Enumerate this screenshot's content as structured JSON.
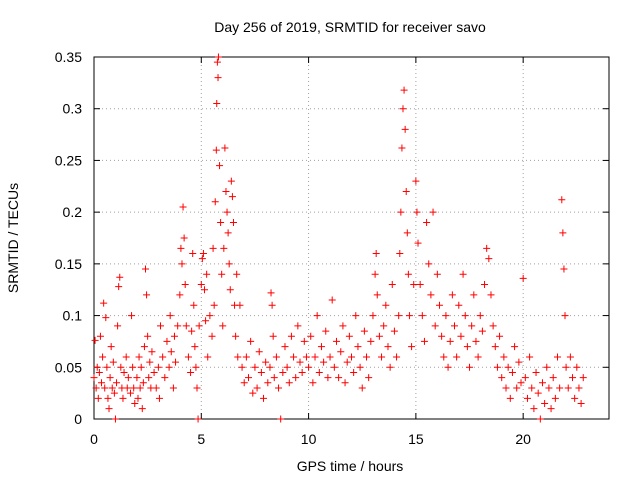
{
  "chart_data": {
    "type": "scatter",
    "title": "Day 256 of 2019, SRMTID for receiver savo",
    "xlabel": "GPS time / hours",
    "ylabel": "SRMTID / TECUs",
    "xlim": [
      0,
      24
    ],
    "ylim": [
      0,
      0.35
    ],
    "grid": true,
    "marker": "+",
    "marker_color": "#ff0000",
    "x_ticks": [
      {
        "value": 0,
        "label": "0"
      },
      {
        "value": 5,
        "label": "5"
      },
      {
        "value": 10,
        "label": "10"
      },
      {
        "value": 15,
        "label": "15"
      },
      {
        "value": 20,
        "label": "20"
      }
    ],
    "y_ticks": [
      {
        "value": 0,
        "label": "0"
      },
      {
        "value": 0.05,
        "label": "0.05"
      },
      {
        "value": 0.1,
        "label": "0.1"
      },
      {
        "value": 0.15,
        "label": "0.15"
      },
      {
        "value": 0.2,
        "label": "0.2"
      },
      {
        "value": 0.25,
        "label": "0.25"
      },
      {
        "value": 0.3,
        "label": "0.3"
      },
      {
        "value": 0.35,
        "label": "0.35"
      }
    ],
    "series": [
      {
        "name": "SRMTID",
        "points": [
          [
            0.0,
            0.04
          ],
          [
            0.05,
            0.076
          ],
          [
            0.1,
            0.03
          ],
          [
            0.15,
            0.05
          ],
          [
            0.2,
            0.02
          ],
          [
            0.25,
            0.045
          ],
          [
            0.3,
            0.08
          ],
          [
            0.35,
            0.035
          ],
          [
            0.4,
            0.06
          ],
          [
            0.45,
            0.112
          ],
          [
            0.5,
            0.03
          ],
          [
            0.55,
            0.098
          ],
          [
            0.6,
            0.05
          ],
          [
            0.65,
            0.02
          ],
          [
            0.7,
            0.01
          ],
          [
            0.75,
            0.04
          ],
          [
            0.8,
            0.07
          ],
          [
            0.85,
            0.03
          ],
          [
            0.9,
            0.055
          ],
          [
            0.95,
            0.025
          ],
          [
            1.0,
            0.0
          ],
          [
            1.05,
            0.035
          ],
          [
            1.1,
            0.09
          ],
          [
            1.15,
            0.128
          ],
          [
            1.2,
            0.137
          ],
          [
            1.25,
            0.05
          ],
          [
            1.3,
            0.03
          ],
          [
            1.35,
            0.02
          ],
          [
            1.4,
            0.045
          ],
          [
            1.5,
            0.06
          ],
          [
            1.55,
            0.03
          ],
          [
            1.6,
            0.04
          ],
          [
            1.7,
            0.025
          ],
          [
            1.75,
            0.1
          ],
          [
            1.8,
            0.05
          ],
          [
            1.85,
            0.03
          ],
          [
            1.9,
            0.015
          ],
          [
            2.0,
            0.04
          ],
          [
            2.05,
            0.02
          ],
          [
            2.1,
            0.06
          ],
          [
            2.15,
            0.03
          ],
          [
            2.2,
            0.05
          ],
          [
            2.25,
            0.01
          ],
          [
            2.3,
            0.035
          ],
          [
            2.35,
            0.07
          ],
          [
            2.4,
            0.145
          ],
          [
            2.45,
            0.12
          ],
          [
            2.5,
            0.08
          ],
          [
            2.55,
            0.04
          ],
          [
            2.6,
            0.055
          ],
          [
            2.65,
            0.03
          ],
          [
            2.7,
            0.065
          ],
          [
            2.8,
            0.045
          ],
          [
            2.9,
            0.03
          ],
          [
            3.0,
            0.05
          ],
          [
            3.05,
            0.02
          ],
          [
            3.1,
            0.09
          ],
          [
            3.2,
            0.06
          ],
          [
            3.3,
            0.04
          ],
          [
            3.4,
            0.075
          ],
          [
            3.5,
            0.05
          ],
          [
            3.55,
            0.1
          ],
          [
            3.6,
            0.065
          ],
          [
            3.7,
            0.03
          ],
          [
            3.75,
            0.08
          ],
          [
            3.8,
            0.055
          ],
          [
            3.9,
            0.09
          ],
          [
            4.0,
            0.12
          ],
          [
            4.05,
            0.165
          ],
          [
            4.1,
            0.15
          ],
          [
            4.15,
            0.205
          ],
          [
            4.2,
            0.175
          ],
          [
            4.25,
            0.13
          ],
          [
            4.3,
            0.09
          ],
          [
            4.4,
            0.06
          ],
          [
            4.5,
            0.045
          ],
          [
            4.55,
            0.085
          ],
          [
            4.6,
            0.16
          ],
          [
            4.65,
            0.11
          ],
          [
            4.7,
            0.07
          ],
          [
            4.75,
            0.05
          ],
          [
            4.8,
            0.03
          ],
          [
            4.85,
            0.0
          ],
          [
            4.9,
            0.09
          ],
          [
            5.0,
            0.13
          ],
          [
            5.05,
            0.155
          ],
          [
            5.1,
            0.16
          ],
          [
            5.15,
            0.125
          ],
          [
            5.2,
            0.095
          ],
          [
            5.25,
            0.14
          ],
          [
            5.3,
            0.06
          ],
          [
            5.4,
            0.1
          ],
          [
            5.5,
            0.08
          ],
          [
            5.55,
            0.165
          ],
          [
            5.6,
            0.11
          ],
          [
            5.65,
            0.21
          ],
          [
            5.7,
            0.26
          ],
          [
            5.72,
            0.305
          ],
          [
            5.75,
            0.345
          ],
          [
            5.78,
            0.33
          ],
          [
            5.8,
            0.35
          ],
          [
            5.85,
            0.245
          ],
          [
            5.9,
            0.19
          ],
          [
            5.95,
            0.14
          ],
          [
            6.0,
            0.09
          ],
          [
            6.05,
            0.165
          ],
          [
            6.1,
            0.262
          ],
          [
            6.15,
            0.22
          ],
          [
            6.2,
            0.2
          ],
          [
            6.25,
            0.18
          ],
          [
            6.3,
            0.15
          ],
          [
            6.35,
            0.125
          ],
          [
            6.4,
            0.23
          ],
          [
            6.45,
            0.215
          ],
          [
            6.5,
            0.19
          ],
          [
            6.55,
            0.11
          ],
          [
            6.6,
            0.08
          ],
          [
            6.65,
            0.14
          ],
          [
            6.7,
            0.06
          ],
          [
            6.8,
            0.11
          ],
          [
            6.9,
            0.05
          ],
          [
            7.0,
            0.035
          ],
          [
            7.1,
            0.06
          ],
          [
            7.2,
            0.04
          ],
          [
            7.3,
            0.075
          ],
          [
            7.4,
            0.025
          ],
          [
            7.5,
            0.05
          ],
          [
            7.6,
            0.03
          ],
          [
            7.7,
            0.065
          ],
          [
            7.8,
            0.045
          ],
          [
            7.9,
            0.02
          ],
          [
            8.0,
            0.055
          ],
          [
            8.1,
            0.035
          ],
          [
            8.2,
            0.05
          ],
          [
            8.25,
            0.122
          ],
          [
            8.3,
            0.11
          ],
          [
            8.35,
            0.08
          ],
          [
            8.4,
            0.04
          ],
          [
            8.5,
            0.06
          ],
          [
            8.6,
            0.03
          ],
          [
            8.7,
            0.0
          ],
          [
            8.8,
            0.045
          ],
          [
            8.9,
            0.07
          ],
          [
            9.0,
            0.05
          ],
          [
            9.1,
            0.035
          ],
          [
            9.2,
            0.08
          ],
          [
            9.3,
            0.06
          ],
          [
            9.4,
            0.04
          ],
          [
            9.5,
            0.09
          ],
          [
            9.6,
            0.055
          ],
          [
            9.7,
            0.045
          ],
          [
            9.8,
            0.075
          ],
          [
            9.9,
            0.06
          ],
          [
            10.0,
            0.05
          ],
          [
            10.1,
            0.08
          ],
          [
            10.2,
            0.035
          ],
          [
            10.3,
            0.06
          ],
          [
            10.4,
            0.1
          ],
          [
            10.5,
            0.045
          ],
          [
            10.6,
            0.07
          ],
          [
            10.7,
            0.055
          ],
          [
            10.8,
            0.085
          ],
          [
            10.9,
            0.04
          ],
          [
            11.0,
            0.06
          ],
          [
            11.1,
            0.115
          ],
          [
            11.2,
            0.05
          ],
          [
            11.3,
            0.075
          ],
          [
            11.4,
            0.04
          ],
          [
            11.5,
            0.065
          ],
          [
            11.6,
            0.09
          ],
          [
            11.7,
            0.035
          ],
          [
            11.8,
            0.055
          ],
          [
            11.9,
            0.08
          ],
          [
            12.0,
            0.06
          ],
          [
            12.1,
            0.045
          ],
          [
            12.2,
            0.1
          ],
          [
            12.3,
            0.07
          ],
          [
            12.4,
            0.05
          ],
          [
            12.5,
            0.03
          ],
          [
            12.6,
            0.085
          ],
          [
            12.7,
            0.06
          ],
          [
            12.8,
            0.04
          ],
          [
            12.9,
            0.075
          ],
          [
            13.0,
            0.1
          ],
          [
            13.1,
            0.14
          ],
          [
            13.15,
            0.16
          ],
          [
            13.2,
            0.12
          ],
          [
            13.3,
            0.08
          ],
          [
            13.4,
            0.06
          ],
          [
            13.5,
            0.09
          ],
          [
            13.6,
            0.11
          ],
          [
            13.7,
            0.07
          ],
          [
            13.8,
            0.05
          ],
          [
            13.9,
            0.13
          ],
          [
            14.0,
            0.085
          ],
          [
            14.1,
            0.06
          ],
          [
            14.2,
            0.1
          ],
          [
            14.25,
            0.16
          ],
          [
            14.3,
            0.2
          ],
          [
            14.35,
            0.262
          ],
          [
            14.4,
            0.3
          ],
          [
            14.45,
            0.318
          ],
          [
            14.5,
            0.28
          ],
          [
            14.55,
            0.22
          ],
          [
            14.6,
            0.18
          ],
          [
            14.65,
            0.14
          ],
          [
            14.7,
            0.1
          ],
          [
            14.8,
            0.07
          ],
          [
            14.9,
            0.13
          ],
          [
            15.0,
            0.23
          ],
          [
            15.05,
            0.2
          ],
          [
            15.1,
            0.17
          ],
          [
            15.2,
            0.13
          ],
          [
            15.3,
            0.1
          ],
          [
            15.4,
            0.075
          ],
          [
            15.5,
            0.19
          ],
          [
            15.6,
            0.15
          ],
          [
            15.7,
            0.12
          ],
          [
            15.8,
            0.2
          ],
          [
            15.9,
            0.09
          ],
          [
            16.0,
            0.14
          ],
          [
            16.1,
            0.11
          ],
          [
            16.2,
            0.08
          ],
          [
            16.3,
            0.06
          ],
          [
            16.4,
            0.1
          ],
          [
            16.5,
            0.05
          ],
          [
            16.6,
            0.075
          ],
          [
            16.7,
            0.12
          ],
          [
            16.8,
            0.09
          ],
          [
            16.9,
            0.06
          ],
          [
            17.0,
            0.11
          ],
          [
            17.1,
            0.08
          ],
          [
            17.2,
            0.14
          ],
          [
            17.3,
            0.1
          ],
          [
            17.4,
            0.07
          ],
          [
            17.5,
            0.05
          ],
          [
            17.6,
            0.09
          ],
          [
            17.7,
            0.12
          ],
          [
            17.8,
            0.075
          ],
          [
            17.9,
            0.06
          ],
          [
            18.0,
            0.1
          ],
          [
            18.1,
            0.085
          ],
          [
            18.2,
            0.13
          ],
          [
            18.3,
            0.165
          ],
          [
            18.4,
            0.155
          ],
          [
            18.5,
            0.12
          ],
          [
            18.6,
            0.09
          ],
          [
            18.7,
            0.07
          ],
          [
            18.8,
            0.05
          ],
          [
            18.9,
            0.08
          ],
          [
            19.0,
            0.04
          ],
          [
            19.1,
            0.06
          ],
          [
            19.2,
            0.03
          ],
          [
            19.3,
            0.05
          ],
          [
            19.4,
            0.02
          ],
          [
            19.5,
            0.045
          ],
          [
            19.6,
            0.07
          ],
          [
            19.7,
            0.03
          ],
          [
            19.8,
            0.055
          ],
          [
            19.9,
            0.035
          ],
          [
            20.0,
            0.136
          ],
          [
            20.1,
            0.04
          ],
          [
            20.2,
            0.02
          ],
          [
            20.3,
            0.06
          ],
          [
            20.4,
            0.03
          ],
          [
            20.5,
            0.01
          ],
          [
            20.6,
            0.045
          ],
          [
            20.7,
            0.025
          ],
          [
            20.8,
            0.0
          ],
          [
            20.9,
            0.035
          ],
          [
            21.0,
            0.015
          ],
          [
            21.1,
            0.05
          ],
          [
            21.2,
            0.03
          ],
          [
            21.3,
            0.01
          ],
          [
            21.4,
            0.04
          ],
          [
            21.5,
            0.02
          ],
          [
            21.6,
            0.06
          ],
          [
            21.7,
            0.03
          ],
          [
            21.8,
            0.212
          ],
          [
            21.85,
            0.18
          ],
          [
            21.9,
            0.145
          ],
          [
            21.95,
            0.1
          ],
          [
            22.0,
            0.05
          ],
          [
            22.1,
            0.03
          ],
          [
            22.2,
            0.06
          ],
          [
            22.3,
            0.04
          ],
          [
            22.4,
            0.02
          ],
          [
            22.5,
            0.05
          ],
          [
            22.6,
            0.03
          ],
          [
            22.7,
            0.015
          ],
          [
            22.8,
            0.04
          ]
        ]
      }
    ]
  }
}
